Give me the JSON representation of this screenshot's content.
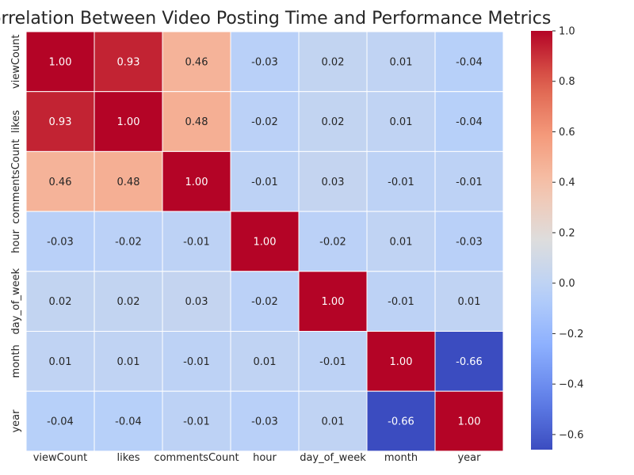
{
  "chart_data": {
    "type": "heatmap",
    "title": "Correlation Between Video Posting Time and Performance Metrics",
    "xlabel": "",
    "ylabel": "",
    "x_categories": [
      "viewCount",
      "likes",
      "commentsCount",
      "hour",
      "day_of_week",
      "month",
      "year"
    ],
    "y_categories": [
      "viewCount",
      "likes",
      "commentsCount",
      "hour",
      "day_of_week",
      "month",
      "year"
    ],
    "values": [
      [
        1.0,
        0.93,
        0.46,
        -0.03,
        0.02,
        0.01,
        -0.04
      ],
      [
        0.93,
        1.0,
        0.48,
        -0.02,
        0.02,
        0.01,
        -0.04
      ],
      [
        0.46,
        0.48,
        1.0,
        -0.01,
        0.03,
        -0.01,
        -0.01
      ],
      [
        -0.03,
        -0.02,
        -0.01,
        1.0,
        -0.02,
        0.01,
        -0.03
      ],
      [
        0.02,
        0.02,
        0.03,
        -0.02,
        1.0,
        -0.01,
        0.01
      ],
      [
        0.01,
        0.01,
        -0.01,
        0.01,
        -0.01,
        1.0,
        -0.66
      ],
      [
        -0.04,
        -0.04,
        -0.01,
        -0.03,
        0.01,
        -0.66,
        1.0
      ]
    ],
    "annotation_format": "0.00",
    "colormap": "coolwarm",
    "colorbar": {
      "range": [
        -0.66,
        1.0
      ],
      "ticks": [
        1.0,
        0.8,
        0.6,
        0.4,
        0.2,
        0.0,
        -0.2,
        -0.4,
        -0.6
      ],
      "tick_labels": [
        "1.0",
        "0.8",
        "0.6",
        "0.4",
        "0.2",
        "0.0",
        "−0.2",
        "−0.4",
        "−0.6"
      ]
    },
    "grid": true,
    "cell_border_color": "#ffffff"
  }
}
